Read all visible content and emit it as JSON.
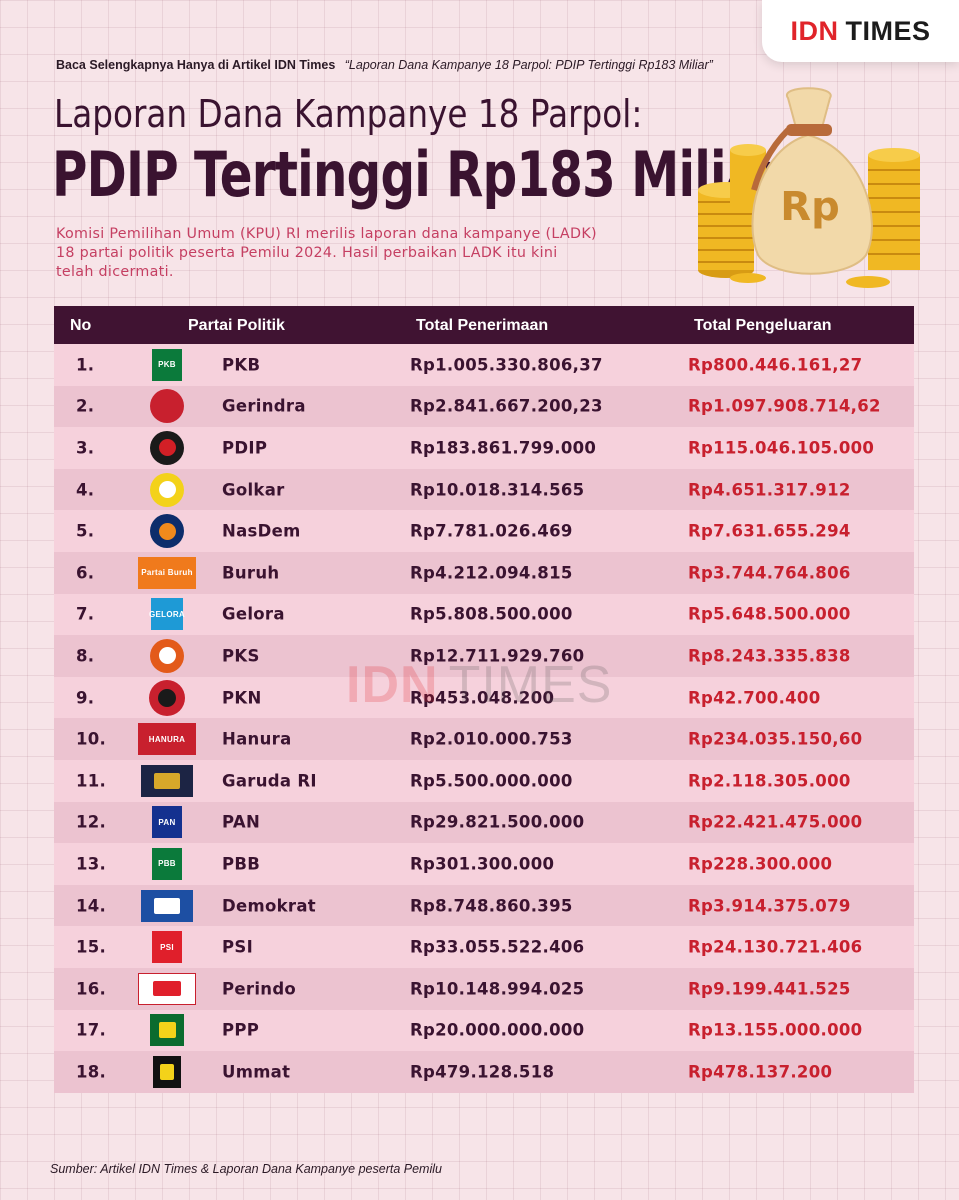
{
  "brand": {
    "idn": "IDN",
    "times": "TIMES"
  },
  "source_line": {
    "label": "Baca Selengkapnya Hanya di Artikel IDN Times",
    "article": "“Laporan Dana Kampanye 18 Parpol: PDIP Tertinggi Rp183 Miliar”"
  },
  "title": {
    "line1": "Laporan Dana Kampanye 18 Parpol:",
    "line2": "PDIP Tertinggi Rp183 Miliar"
  },
  "intro": [
    "Komisi Pemilihan Umum (KPU) RI merilis laporan dana kampanye (LADK)",
    "18 partai politik peserta Pemilu 2024. Hasil perbaikan LADK itu kini",
    "telah dicermati."
  ],
  "money_bag": {
    "symbol": "Rp"
  },
  "table": {
    "headers": {
      "no": "No",
      "party": "Partai Politik",
      "income": "Total Penerimaan",
      "expense": "Total Pengeluaran"
    },
    "rows": [
      {
        "no": "1.",
        "logo": "pkb-logo",
        "logo_text": "PKB",
        "party": "PKB",
        "income": "Rp1.005.330.806,37",
        "expense": "Rp800.446.161,27"
      },
      {
        "no": "2.",
        "logo": "gerindra-logo",
        "logo_text": "",
        "party": "Gerindra",
        "income": "Rp2.841.667.200,23",
        "expense": "Rp1.097.908.714,62"
      },
      {
        "no": "3.",
        "logo": "pdip-logo",
        "logo_text": "",
        "party": "PDIP",
        "income": "Rp183.861.799.000",
        "expense": "Rp115.046.105.000"
      },
      {
        "no": "4.",
        "logo": "golkar-logo",
        "logo_text": "",
        "party": "Golkar",
        "income": "Rp10.018.314.565",
        "expense": "Rp4.651.317.912"
      },
      {
        "no": "5.",
        "logo": "nasdem-logo",
        "logo_text": "",
        "party": "NasDem",
        "income": "Rp7.781.026.469",
        "expense": "Rp7.631.655.294"
      },
      {
        "no": "6.",
        "logo": "buruh-logo",
        "logo_text": "Partai Buruh",
        "party": "Buruh",
        "income": "Rp4.212.094.815",
        "expense": "Rp3.744.764.806"
      },
      {
        "no": "7.",
        "logo": "gelora-logo",
        "logo_text": "GELORA",
        "party": "Gelora",
        "income": "Rp5.808.500.000",
        "expense": "Rp5.648.500.000"
      },
      {
        "no": "8.",
        "logo": "pks-logo",
        "logo_text": "",
        "party": "PKS",
        "income": "Rp12.711.929.760",
        "expense": "Rp8.243.335.838"
      },
      {
        "no": "9.",
        "logo": "pkn-logo",
        "logo_text": "",
        "party": "PKN",
        "income": "Rp453.048.200",
        "expense": "Rp42.700.400"
      },
      {
        "no": "10.",
        "logo": "hanura-logo",
        "logo_text": "HANURA",
        "party": "Hanura",
        "income": "Rp2.010.000.753",
        "expense": "Rp234.035.150,60"
      },
      {
        "no": "11.",
        "logo": "garuda-logo",
        "logo_text": "",
        "party": "Garuda RI",
        "income": "Rp5.500.000.000",
        "expense": "Rp2.118.305.000"
      },
      {
        "no": "12.",
        "logo": "pan-logo",
        "logo_text": "PAN",
        "party": "PAN",
        "income": "Rp29.821.500.000",
        "expense": "Rp22.421.475.000"
      },
      {
        "no": "13.",
        "logo": "pbb-logo",
        "logo_text": "PBB",
        "party": "PBB",
        "income": "Rp301.300.000",
        "expense": "Rp228.300.000"
      },
      {
        "no": "14.",
        "logo": "demokrat-logo",
        "logo_text": "",
        "party": "Demokrat",
        "income": "Rp8.748.860.395",
        "expense": "Rp3.914.375.079"
      },
      {
        "no": "15.",
        "logo": "psi-logo",
        "logo_text": "PSI",
        "party": "PSI",
        "income": "Rp33.055.522.406",
        "expense": "Rp24.130.721.406"
      },
      {
        "no": "16.",
        "logo": "perindo-logo",
        "logo_text": "",
        "party": "Perindo",
        "income": "Rp10.148.994.025",
        "expense": "Rp9.199.441.525"
      },
      {
        "no": "17.",
        "logo": "ppp-logo",
        "logo_text": "",
        "party": "PPP",
        "income": "Rp20.000.000.000",
        "expense": "Rp13.155.000.000"
      },
      {
        "no": "18.",
        "logo": "ummat-logo",
        "logo_text": "",
        "party": "Ummat",
        "income": "Rp479.128.518",
        "expense": "Rp478.137.200"
      }
    ]
  },
  "watermark": {
    "idn": "IDN",
    "times": "TIMES"
  },
  "footer": {
    "source": "Sumber: Artikel IDN Times & Laporan Dana Kampanye peserta Pemilu"
  },
  "colors": {
    "header_bg": "#401332",
    "title": "#3a1330",
    "intro": "#c53f62",
    "expense": "#c8202e",
    "row_light": "#f6d1dc",
    "row_dark": "#ecc3d0",
    "brand_red": "#e0242a"
  }
}
